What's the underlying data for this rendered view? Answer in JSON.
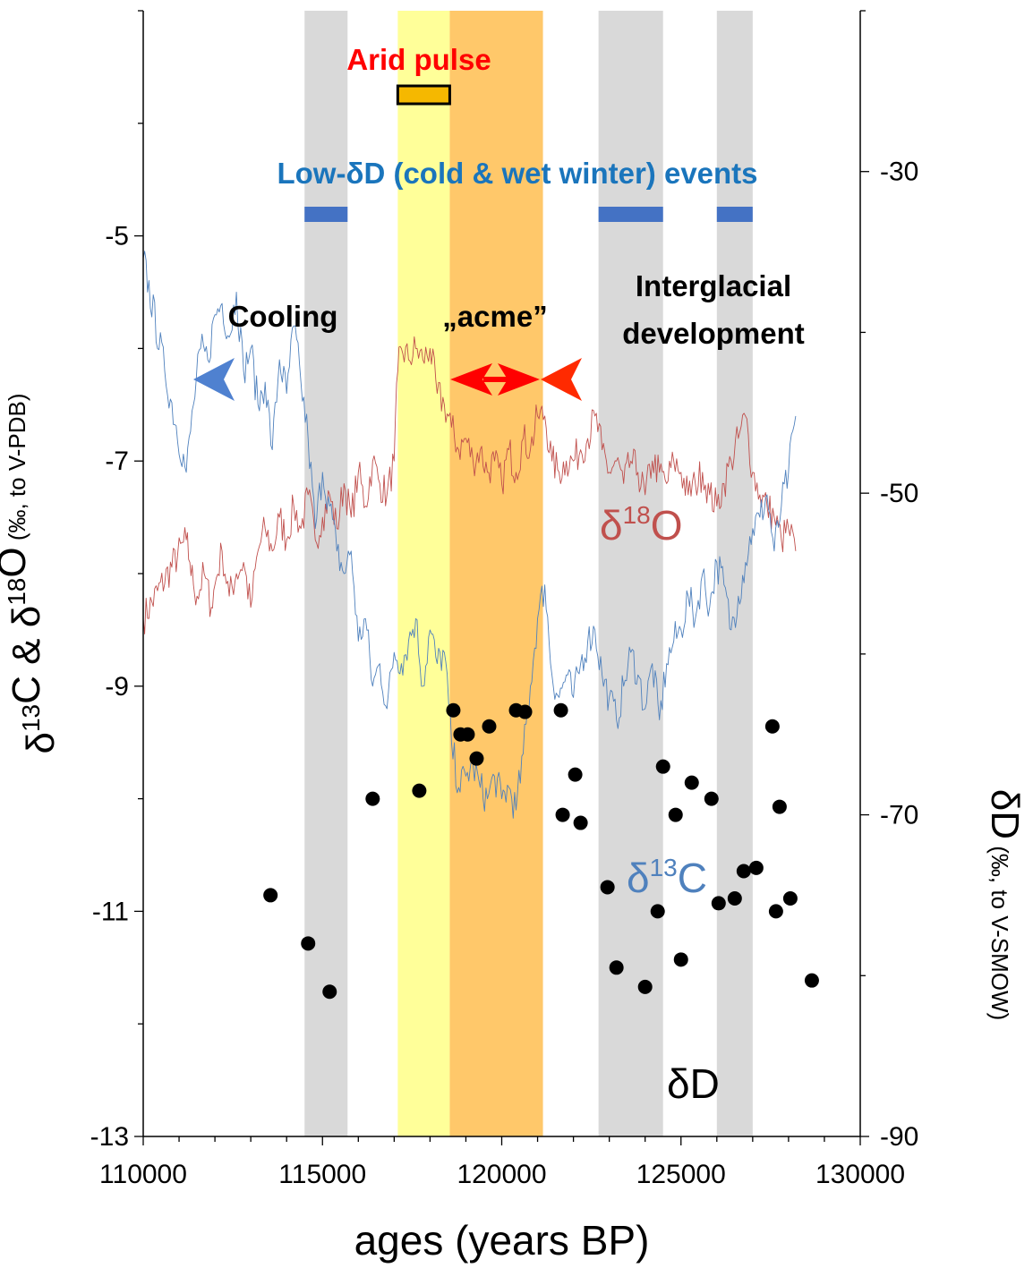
{
  "chart_data": {
    "type": "line",
    "xlabel": "ages (years BP)",
    "ylabel_left": {
      "prefix": "δ",
      "sup1": "13",
      "mid": "C & δ",
      "sup2": "18",
      "tail": "O",
      "unit": "(‰, to V-PDB)"
    },
    "ylabel_right": {
      "main": "δD",
      "unit": "(‰, to V-SMOW)"
    },
    "xlim": [
      110000,
      130000
    ],
    "ylim_left": [
      -13,
      -3
    ],
    "ylim_right": [
      -90,
      -20
    ],
    "x_ticks": [
      110000,
      115000,
      120000,
      125000,
      130000
    ],
    "y_ticks_left": [
      -13,
      -11,
      -9,
      -7,
      -5
    ],
    "y_ticks_right": [
      -90,
      -70,
      -50,
      -30
    ],
    "bands_gray": [
      [
        114500,
        115700
      ],
      [
        122700,
        124500
      ],
      [
        126000,
        127000
      ]
    ],
    "band_yellow": [
      117100,
      118550
    ],
    "band_orange": [
      118550,
      121150
    ],
    "arid_pulse": {
      "label": "Arid pulse",
      "range": [
        117100,
        118550
      ],
      "color": "#f5b800"
    },
    "low_dD_events": {
      "label": "Low-δD (cold & wet winter) events",
      "ranges": [
        [
          114500,
          115700
        ],
        [
          122700,
          124500
        ],
        [
          126000,
          127000
        ]
      ],
      "color": "#4472c4"
    },
    "annotations": {
      "cooling": "Cooling",
      "acme": "„acme”",
      "interglacial_1": "Interglacial",
      "interglacial_2": "development"
    },
    "series": [
      {
        "name": "δ18O",
        "label_main": "δ",
        "label_sup": "18",
        "label_tail": "O",
        "axis": "left",
        "color": "#c0504d",
        "x": [
          110000,
          111200,
          111300,
          111400,
          111500,
          111700,
          111900,
          112000,
          112200,
          112400,
          112600,
          112800,
          113000,
          113200,
          113400,
          113600,
          113800,
          114000,
          114200,
          114400,
          114600,
          114800,
          115000,
          115200,
          115400,
          115600,
          115800,
          116000,
          116200,
          116400,
          116600,
          116800,
          117000,
          117100,
          117200,
          117400,
          117600,
          117800,
          118000,
          118200,
          118400,
          118600,
          118800,
          119000,
          119200,
          119400,
          119600,
          119800,
          120000,
          120200,
          120400,
          120600,
          120800,
          121000,
          121200,
          121400,
          121600,
          121800,
          122000,
          122200,
          122400,
          122600,
          122800,
          123000,
          123200,
          123400,
          123600,
          123800,
          124000,
          124200,
          124400,
          124600,
          124800,
          125000,
          125200,
          125400,
          125600,
          125800,
          126000,
          126200,
          126400,
          126600,
          126800,
          127000,
          127200,
          127400,
          127600,
          127800,
          128000,
          128200
        ],
        "y": [
          -8.4,
          -7.7,
          -7.9,
          -8.1,
          -8.2,
          -8.0,
          -8.3,
          -8.1,
          -7.8,
          -8.2,
          -8.0,
          -7.9,
          -8.3,
          -7.8,
          -7.6,
          -7.8,
          -7.5,
          -7.7,
          -7.4,
          -7.6,
          -7.3,
          -7.7,
          -7.5,
          -7.3,
          -7.6,
          -7.2,
          -7.5,
          -7.1,
          -7.4,
          -7.0,
          -7.2,
          -7.3,
          -7.0,
          -6.2,
          -6.0,
          -6.1,
          -6.0,
          -6.1,
          -6.0,
          -6.4,
          -6.5,
          -6.7,
          -6.9,
          -6.8,
          -7.0,
          -6.9,
          -7.1,
          -7.0,
          -7.2,
          -6.9,
          -7.1,
          -6.8,
          -6.9,
          -6.6,
          -6.6,
          -7.0,
          -7.1,
          -7.0,
          -7.0,
          -6.9,
          -6.8,
          -6.6,
          -6.9,
          -7.1,
          -7.0,
          -7.2,
          -7.0,
          -7.1,
          -7.3,
          -7.0,
          -7.1,
          -7.2,
          -7.0,
          -7.1,
          -7.3,
          -7.2,
          -7.1,
          -7.3,
          -7.4,
          -7.2,
          -7.0,
          -6.8,
          -6.6,
          -7.1,
          -7.3,
          -7.4,
          -7.5,
          -7.7,
          -7.6,
          -7.8
        ]
      },
      {
        "name": "δ13C",
        "label_main": "δ",
        "label_sup": "13",
        "label_tail": "C",
        "axis": "left",
        "color": "#4f81bd",
        "x": [
          110000,
          110600,
          111200,
          111400,
          111600,
          111800,
          112000,
          112200,
          112400,
          112600,
          112800,
          113000,
          113200,
          113400,
          113600,
          113800,
          114000,
          114200,
          114400,
          114600,
          114800,
          115000,
          115200,
          115400,
          115600,
          115800,
          116000,
          116200,
          116400,
          116600,
          116800,
          117000,
          117200,
          117400,
          117600,
          117800,
          118000,
          118200,
          118400,
          118600,
          118800,
          119000,
          119200,
          119400,
          119600,
          119800,
          120000,
          120200,
          120400,
          120600,
          120800,
          121000,
          121200,
          121400,
          121600,
          121800,
          122000,
          122200,
          122400,
          122600,
          122800,
          123000,
          123200,
          123400,
          123600,
          123800,
          124000,
          124200,
          124400,
          124600,
          124800,
          125000,
          125200,
          125400,
          125600,
          125800,
          126000,
          126200,
          126400,
          126600,
          126800,
          127000,
          127200,
          127400,
          127600,
          127800,
          128000,
          128200
        ],
        "y": [
          -5.2,
          -6.2,
          -7.1,
          -6.5,
          -6.0,
          -6.1,
          -5.7,
          -5.6,
          -5.9,
          -5.5,
          -6.2,
          -6.0,
          -6.5,
          -6.3,
          -6.9,
          -6.1,
          -6.4,
          -5.8,
          -6.3,
          -6.8,
          -7.6,
          -7.1,
          -7.4,
          -7.8,
          -8.0,
          -7.8,
          -8.6,
          -8.4,
          -9.0,
          -8.8,
          -9.2,
          -8.7,
          -8.8,
          -8.6,
          -8.4,
          -9.0,
          -8.5,
          -8.8,
          -8.7,
          -9.5,
          -9.9,
          -9.8,
          -9.7,
          -9.9,
          -10.0,
          -9.8,
          -10.0,
          -9.9,
          -10.1,
          -9.6,
          -9.0,
          -8.4,
          -8.1,
          -8.9,
          -9.1,
          -8.9,
          -9.1,
          -8.8,
          -8.6,
          -8.5,
          -8.9,
          -9.1,
          -9.3,
          -9.0,
          -8.7,
          -8.9,
          -9.2,
          -8.8,
          -9.3,
          -8.8,
          -8.6,
          -8.5,
          -8.2,
          -8.4,
          -8.0,
          -8.3,
          -7.9,
          -8.1,
          -8.5,
          -8.2,
          -7.9,
          -7.6,
          -7.5,
          -7.3,
          -7.8,
          -7.4,
          -7.1,
          -6.6
        ]
      },
      {
        "name": "δD",
        "label": "δD",
        "axis": "right",
        "type": "scatter",
        "color": "#000000",
        "x": [
          113550,
          114600,
          115200,
          116400,
          117700,
          118650,
          118850,
          119050,
          119300,
          119650,
          120400,
          120650,
          121650,
          121700,
          122050,
          122200,
          122950,
          123200,
          124000,
          124350,
          124500,
          124850,
          125000,
          125300,
          125850,
          126050,
          126500,
          126750,
          127100,
          127550,
          127650,
          127750,
          128050,
          128650
        ],
        "y": [
          -75,
          -78,
          -81,
          -69,
          -68.5,
          -63.5,
          -65,
          -65,
          -66.5,
          -64.5,
          -63.5,
          -63.6,
          -63.5,
          -70,
          -67.5,
          -70.5,
          -74.5,
          -79.5,
          -80.7,
          -76,
          -67,
          -70,
          -79,
          -68,
          -69,
          -75.5,
          -75.2,
          -73.5,
          -73.3,
          -64.5,
          -76,
          -69.5,
          -75.2,
          -80.3
        ]
      }
    ]
  }
}
